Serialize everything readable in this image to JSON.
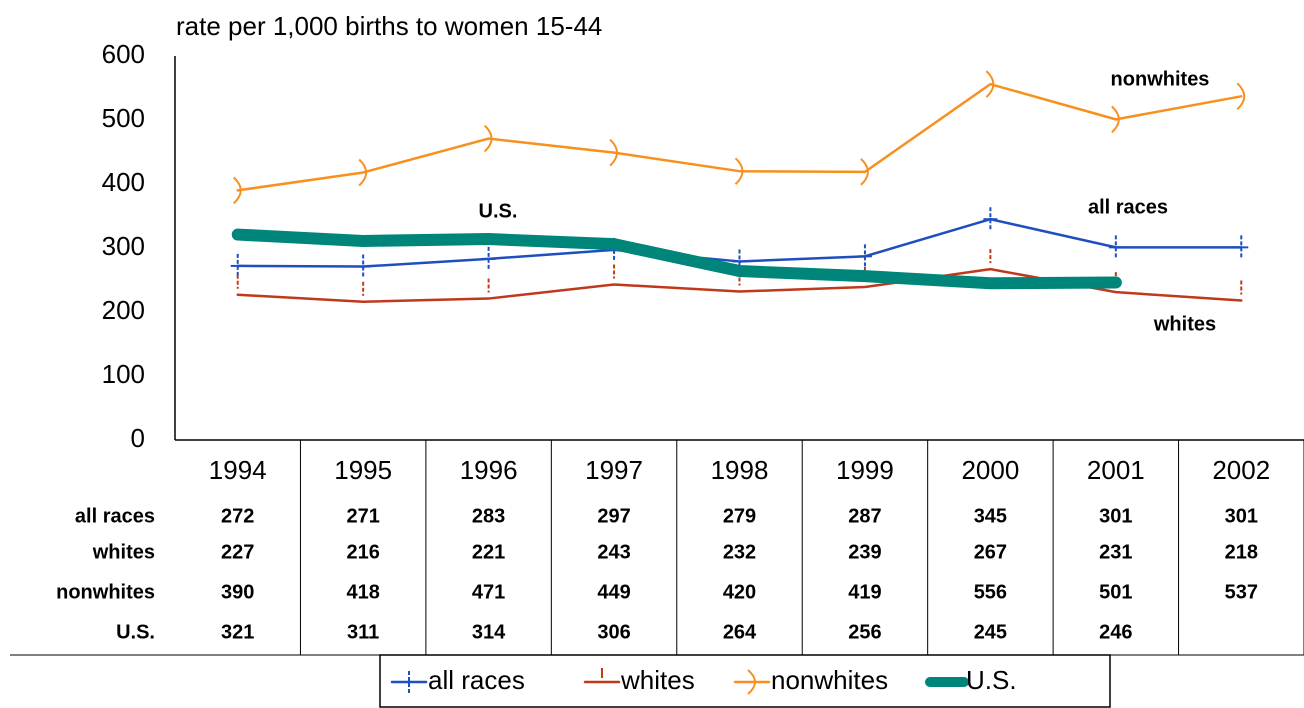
{
  "chart_data": {
    "type": "line",
    "y_label": "rate per 1,000 births to women 15-44",
    "categories": [
      "1994",
      "1995",
      "1996",
      "1997",
      "1998",
      "1999",
      "2000",
      "2001",
      "2002"
    ],
    "series": [
      {
        "name": "all races",
        "color": "#1f4fbf",
        "values": [
          272,
          271,
          283,
          297,
          279,
          287,
          345,
          301,
          301
        ]
      },
      {
        "name": "whites",
        "color": "#c0391b",
        "values": [
          227,
          216,
          221,
          243,
          232,
          239,
          267,
          231,
          218
        ]
      },
      {
        "name": "nonwhites",
        "color": "#f7901e",
        "values": [
          390,
          418,
          471,
          449,
          420,
          419,
          556,
          501,
          537
        ]
      },
      {
        "name": "U.S.",
        "color": "#00857a",
        "values": [
          321,
          311,
          314,
          306,
          264,
          256,
          245,
          246,
          null
        ]
      }
    ],
    "annotations": [
      "nonwhites",
      "U.S.",
      "all races",
      "whites"
    ],
    "ylim": [
      0,
      600
    ],
    "yticks": [
      0,
      100,
      200,
      300,
      400,
      500,
      600
    ],
    "grid": false
  }
}
